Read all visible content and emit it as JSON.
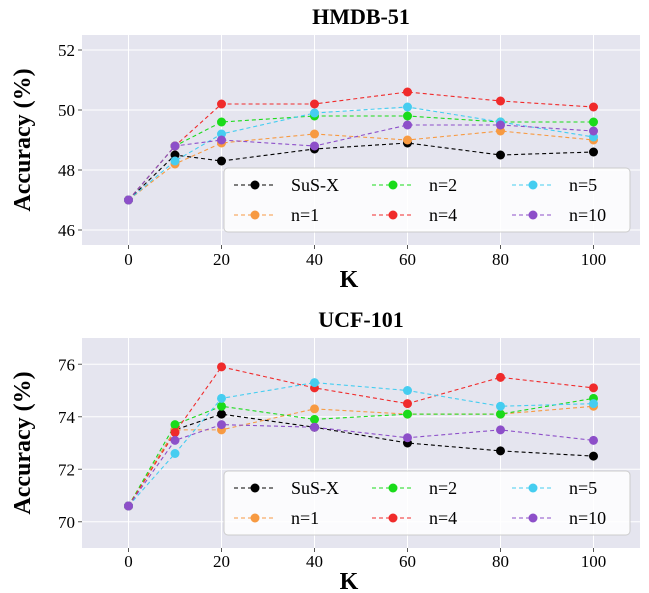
{
  "chart_data": [
    {
      "type": "line",
      "title": "HMDB-51",
      "xlabel": "K",
      "ylabel": "Accuracy (%)",
      "xlim": [
        -10,
        110
      ],
      "ylim": [
        45.5,
        52.5
      ],
      "xticks": [
        0,
        20,
        40,
        60,
        80,
        100
      ],
      "yticks": [
        46,
        48,
        50,
        52
      ],
      "grid": true,
      "legend_position": "bottom-right",
      "series": [
        {
          "name": "SuS-X",
          "color": "#000000",
          "x": [
            0,
            10,
            20,
            40,
            60,
            80,
            100
          ],
          "values": [
            47.0,
            48.5,
            48.3,
            48.7,
            48.9,
            48.5,
            48.6
          ]
        },
        {
          "name": "n=1",
          "color": "#f79a42",
          "x": [
            0,
            10,
            20,
            40,
            60,
            80,
            100
          ],
          "values": [
            47.0,
            48.2,
            48.9,
            49.2,
            49.0,
            49.3,
            49.0
          ]
        },
        {
          "name": "n=2",
          "color": "#1adb1a",
          "x": [
            0,
            10,
            20,
            40,
            60,
            80,
            100
          ],
          "values": [
            47.0,
            48.8,
            49.6,
            49.8,
            49.8,
            49.6,
            49.6
          ]
        },
        {
          "name": "n=4",
          "color": "#f02b2b",
          "x": [
            0,
            10,
            20,
            40,
            60,
            80,
            100
          ],
          "values": [
            47.0,
            48.8,
            50.2,
            50.2,
            50.6,
            50.3,
            50.1
          ]
        },
        {
          "name": "n=5",
          "color": "#45cdf0",
          "x": [
            0,
            10,
            20,
            40,
            60,
            80,
            100
          ],
          "values": [
            47.0,
            48.3,
            49.2,
            49.9,
            50.1,
            49.6,
            49.1
          ]
        },
        {
          "name": "n=10",
          "color": "#8d4fc9",
          "x": [
            0,
            10,
            20,
            40,
            60,
            80,
            100
          ],
          "values": [
            47.0,
            48.8,
            49.0,
            48.8,
            49.5,
            49.5,
            49.3
          ]
        }
      ]
    },
    {
      "type": "line",
      "title": "UCF-101",
      "xlabel": "K",
      "ylabel": "Accuracy (%)",
      "xlim": [
        -10,
        110
      ],
      "ylim": [
        69.0,
        77.0
      ],
      "xticks": [
        0,
        20,
        40,
        60,
        80,
        100
      ],
      "yticks": [
        70,
        72,
        74,
        76
      ],
      "grid": true,
      "legend_position": "bottom-right",
      "series": [
        {
          "name": "SuS-X",
          "color": "#000000",
          "x": [
            0,
            10,
            20,
            40,
            60,
            80,
            100
          ],
          "values": [
            70.6,
            73.5,
            74.1,
            73.6,
            73.0,
            72.7,
            72.5
          ]
        },
        {
          "name": "n=1",
          "color": "#f79a42",
          "x": [
            0,
            10,
            20,
            40,
            60,
            80,
            100
          ],
          "values": [
            70.6,
            73.5,
            73.5,
            74.3,
            74.1,
            74.1,
            74.4
          ]
        },
        {
          "name": "n=2",
          "color": "#1adb1a",
          "x": [
            0,
            10,
            20,
            40,
            60,
            80,
            100
          ],
          "values": [
            70.6,
            73.7,
            74.4,
            73.9,
            74.1,
            74.1,
            74.7
          ]
        },
        {
          "name": "n=4",
          "color": "#f02b2b",
          "x": [
            0,
            10,
            20,
            40,
            60,
            80,
            100
          ],
          "values": [
            70.6,
            73.4,
            75.9,
            75.1,
            74.5,
            75.5,
            75.1
          ]
        },
        {
          "name": "n=5",
          "color": "#45cdf0",
          "x": [
            0,
            10,
            20,
            40,
            60,
            80,
            100
          ],
          "values": [
            70.6,
            72.6,
            74.7,
            75.3,
            75.0,
            74.4,
            74.5
          ]
        },
        {
          "name": "n=10",
          "color": "#8d4fc9",
          "x": [
            0,
            10,
            20,
            40,
            60,
            80,
            100
          ],
          "values": [
            70.6,
            73.1,
            73.7,
            73.6,
            73.2,
            73.5,
            73.1
          ]
        }
      ]
    }
  ]
}
